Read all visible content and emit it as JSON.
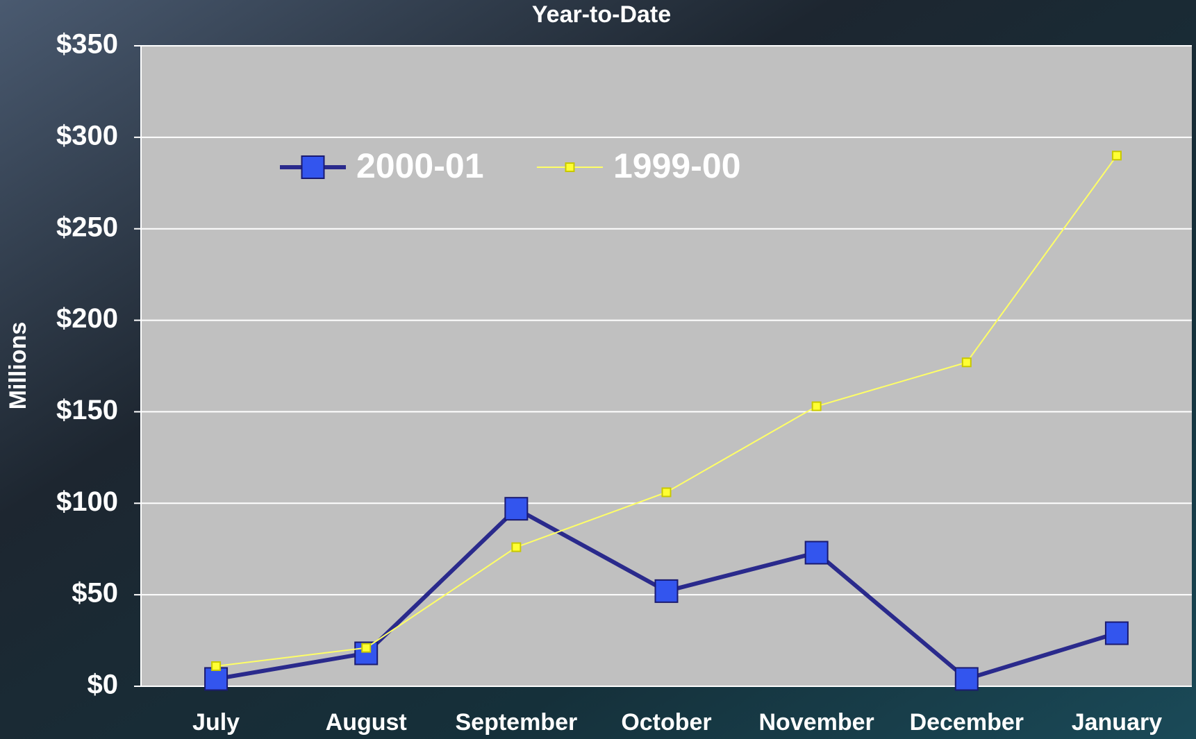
{
  "chart_data": {
    "type": "line",
    "title": "Year-to-Date",
    "y_label": "Millions",
    "categories": [
      "July",
      "August",
      "September",
      "October",
      "November",
      "December",
      "January"
    ],
    "series": [
      {
        "name": "2000-01",
        "color": "#3355ee",
        "line_color": "#2a2a8c",
        "values": [
          4,
          18,
          97,
          52,
          73,
          4,
          29
        ]
      },
      {
        "name": "1999-00",
        "color": "#ffff33",
        "line_color": "#ffff66",
        "values": [
          11,
          21,
          76,
          106,
          153,
          177,
          290
        ]
      }
    ],
    "ylim": [
      0,
      350
    ],
    "yticks": [
      {
        "value": 0,
        "label": "$0"
      },
      {
        "value": 50,
        "label": "$50"
      },
      {
        "value": 100,
        "label": "$100"
      },
      {
        "value": 150,
        "label": "$150"
      },
      {
        "value": 200,
        "label": "$200"
      },
      {
        "value": 250,
        "label": "$250"
      },
      {
        "value": 300,
        "label": "$300"
      },
      {
        "value": 350,
        "label": "$350"
      }
    ],
    "grid": true,
    "legend": "top-left"
  }
}
